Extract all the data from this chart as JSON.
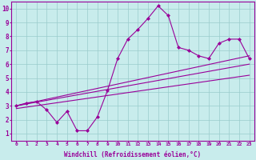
{
  "xlabel": "Windchill (Refroidissement éolien,°C)",
  "ylabel": "",
  "bg_color": "#c8ecec",
  "line_color": "#990099",
  "grid_color": "#99cccc",
  "xlim": [
    -0.5,
    23.5
  ],
  "ylim": [
    0.5,
    10.5
  ],
  "xticks": [
    0,
    1,
    2,
    3,
    4,
    5,
    6,
    7,
    8,
    9,
    10,
    11,
    12,
    13,
    14,
    15,
    16,
    17,
    18,
    19,
    20,
    21,
    22,
    23
  ],
  "yticks": [
    1,
    2,
    3,
    4,
    5,
    6,
    7,
    8,
    9,
    10
  ],
  "main_x": [
    0,
    1,
    2,
    3,
    4,
    5,
    6,
    7,
    8,
    9,
    10,
    11,
    12,
    13,
    14,
    15,
    16,
    17,
    18,
    19,
    20,
    21,
    22,
    23
  ],
  "main_y": [
    3.0,
    3.2,
    3.3,
    2.7,
    1.8,
    2.6,
    1.2,
    1.2,
    2.2,
    4.1,
    6.4,
    7.8,
    8.5,
    9.3,
    10.2,
    9.5,
    7.2,
    7.0,
    6.6,
    6.4,
    7.5,
    7.8,
    7.8,
    6.4
  ],
  "line1_x": [
    0,
    23
  ],
  "line1_y": [
    3.0,
    6.6
  ],
  "line2_x": [
    0,
    23
  ],
  "line2_y": [
    2.8,
    5.2
  ],
  "line3_x": [
    0,
    23
  ],
  "line3_y": [
    3.0,
    6.0
  ]
}
